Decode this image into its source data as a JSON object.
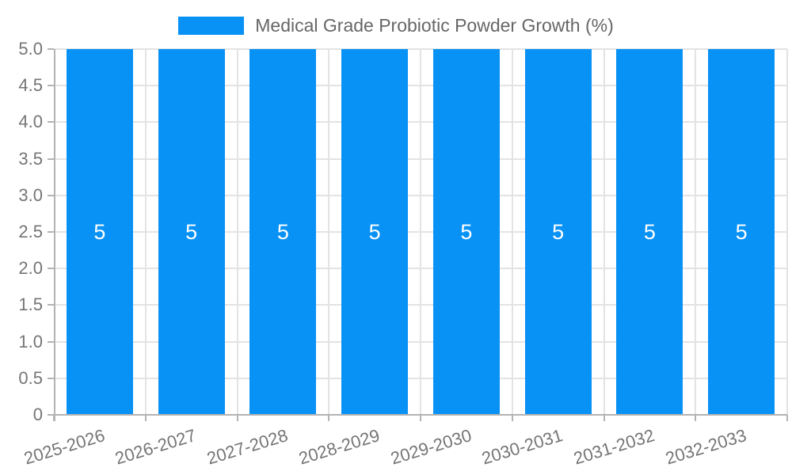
{
  "chart_data": {
    "type": "bar",
    "title": "Medical Grade Probiotic Powder Growth (%)",
    "series": [
      {
        "name": "Medical Grade Probiotic Powder Growth (%)",
        "values": [
          5,
          5,
          5,
          5,
          5,
          5,
          5,
          5
        ]
      }
    ],
    "categories": [
      "2025-2026",
      "2026-2027",
      "2027-2028",
      "2028-2029",
      "2029-2030",
      "2030-2031",
      "2031-2032",
      "2032-2033"
    ],
    "bar_value_labels": [
      "5",
      "5",
      "5",
      "5",
      "5",
      "5",
      "5",
      "5"
    ],
    "ylim": [
      0,
      5
    ],
    "ytick_labels": [
      "0",
      "0.5",
      "1.0",
      "1.5",
      "2.0",
      "2.5",
      "3.0",
      "3.5",
      "4.0",
      "4.5",
      "5.0"
    ],
    "grid": true,
    "legend_position": "top",
    "colors": {
      "bar": "#0992f5",
      "grid": "#e3e3e3",
      "axis": "#b3b3b3",
      "tick_text": "#757575",
      "legend_text": "#666666",
      "bar_label": "#ffffff"
    }
  },
  "legend": {
    "label": "Medical Grade Probiotic Powder Growth (%)"
  }
}
